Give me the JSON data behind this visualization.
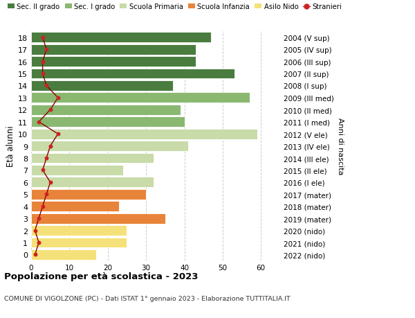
{
  "ages": [
    0,
    1,
    2,
    3,
    4,
    5,
    6,
    7,
    8,
    9,
    10,
    11,
    12,
    13,
    14,
    15,
    16,
    17,
    18
  ],
  "years": [
    "2022 (nido)",
    "2021 (nido)",
    "2020 (nido)",
    "2019 (mater)",
    "2018 (mater)",
    "2017 (mater)",
    "2016 (I ele)",
    "2015 (II ele)",
    "2014 (III ele)",
    "2013 (IV ele)",
    "2012 (V ele)",
    "2011 (I med)",
    "2010 (II med)",
    "2009 (III med)",
    "2008 (I sup)",
    "2007 (II sup)",
    "2006 (III sup)",
    "2005 (IV sup)",
    "2004 (V sup)"
  ],
  "bar_values": [
    17,
    25,
    25,
    35,
    23,
    30,
    32,
    24,
    32,
    41,
    59,
    40,
    39,
    57,
    37,
    53,
    43,
    43,
    47
  ],
  "bar_colors": [
    "#f5e17a",
    "#f5e17a",
    "#f5e17a",
    "#e8843a",
    "#e8843a",
    "#e8843a",
    "#c8dba8",
    "#c8dba8",
    "#c8dba8",
    "#c8dba8",
    "#c8dba8",
    "#8ab870",
    "#8ab870",
    "#8ab870",
    "#4a7c3f",
    "#4a7c3f",
    "#4a7c3f",
    "#4a7c3f",
    "#4a7c3f"
  ],
  "stranieri_values": [
    1,
    2,
    1,
    2,
    3,
    4,
    5,
    3,
    4,
    5,
    7,
    2,
    5,
    7,
    4,
    3,
    3,
    4,
    3
  ],
  "legend_labels": [
    "Sec. II grado",
    "Sec. I grado",
    "Scuola Primaria",
    "Scuola Infanzia",
    "Asilo Nido",
    "Stranieri"
  ],
  "legend_colors": [
    "#4a7c3f",
    "#8ab870",
    "#c8dba8",
    "#e8843a",
    "#f5e17a",
    "#cc2222"
  ],
  "title": "Popolazione per età scolastica - 2023",
  "subtitle": "COMUNE DI VIGOLZONE (PC) - Dati ISTAT 1° gennaio 2023 - Elaborazione TUTTITALIA.IT",
  "ylabel_left": "Età alunni",
  "ylabel_right": "Anni di nascita",
  "xlim": [
    0,
    65
  ],
  "xticks": [
    0,
    10,
    20,
    30,
    40,
    50,
    60
  ],
  "background_color": "#ffffff",
  "grid_color": "#cccccc",
  "stranieri_line_color": "#8b0000",
  "stranieri_dot_color": "#cc2222",
  "bar_height": 0.85
}
